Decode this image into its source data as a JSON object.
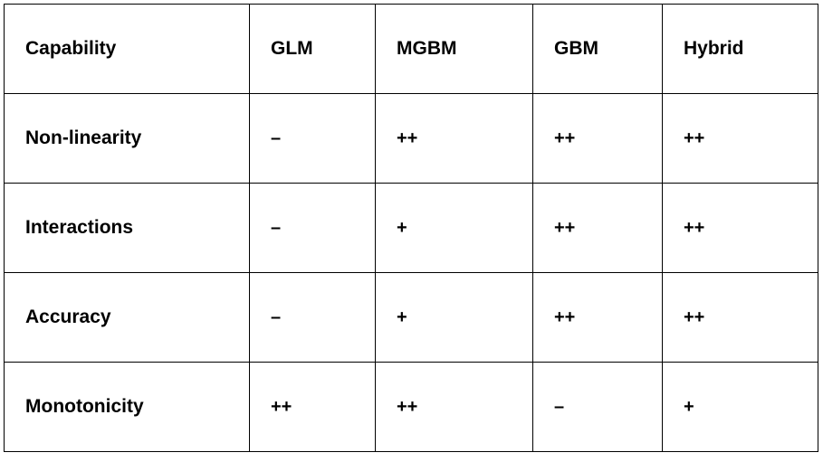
{
  "table": {
    "headers": [
      "Capability",
      "GLM",
      "MGBM",
      "GBM",
      "Hybrid"
    ],
    "rows": [
      {
        "label": "Non-linearity",
        "values": [
          "–",
          "++",
          "++",
          "++"
        ]
      },
      {
        "label": "Interactions",
        "values": [
          "–",
          "+",
          "++",
          "++"
        ]
      },
      {
        "label": "Accuracy",
        "values": [
          "–",
          "+",
          "++",
          "++"
        ]
      },
      {
        "label": "Monotonicity",
        "values": [
          "++",
          "++",
          "–",
          "+"
        ]
      }
    ]
  }
}
